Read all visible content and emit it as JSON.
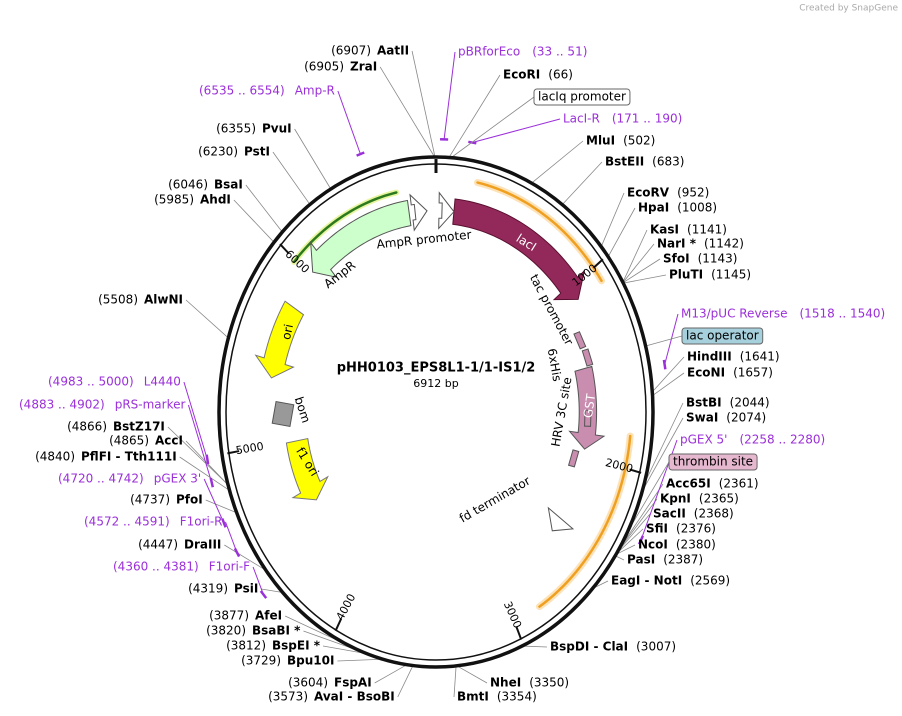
{
  "header": {
    "credit": "Created by SnapGene"
  },
  "map": {
    "name": "pHH0103_EPS8L1-1/1-IS1/2",
    "size": {
      "value": 6912,
      "label": "6912 bp"
    },
    "ruler": {
      "ticks": [
        1000,
        2000,
        3000,
        4000,
        5000,
        6000
      ]
    },
    "sites": [
      {
        "name": "AatII",
        "position": {
          "value": 6907,
          "label": "(6907)"
        }
      },
      {
        "name": "ZraI",
        "position": {
          "value": 6905,
          "label": "(6905)"
        }
      },
      {
        "name": "EcoRI",
        "position": {
          "value": 66,
          "label": "(66)"
        }
      },
      {
        "name": "MluI",
        "position": {
          "value": 502,
          "label": "(502)"
        }
      },
      {
        "name": "BstEII",
        "position": {
          "value": 683,
          "label": "(683)"
        }
      },
      {
        "name": "EcoRV",
        "position": {
          "value": 952,
          "label": "(952)"
        }
      },
      {
        "name": "HpaI",
        "position": {
          "value": 1008,
          "label": "(1008)"
        }
      },
      {
        "name": "KasI",
        "position": {
          "value": 1141,
          "label": "(1141)"
        }
      },
      {
        "name": "NarI *",
        "position": {
          "value": 1142,
          "label": "(1142)"
        }
      },
      {
        "name": "SfoI",
        "position": {
          "value": 1143,
          "label": "(1143)"
        }
      },
      {
        "name": "PluTI",
        "position": {
          "value": 1145,
          "label": "(1145)"
        }
      },
      {
        "name": "HindIII",
        "position": {
          "value": 1641,
          "label": "(1641)"
        }
      },
      {
        "name": "EcoNI",
        "position": {
          "value": 1657,
          "label": "(1657)"
        }
      },
      {
        "name": "BstBI",
        "position": {
          "value": 2044,
          "label": "(2044)"
        }
      },
      {
        "name": "SwaI",
        "position": {
          "value": 2074,
          "label": "(2074)"
        }
      },
      {
        "name": "Acc65I",
        "position": {
          "value": 2361,
          "label": "(2361)"
        }
      },
      {
        "name": "KpnI",
        "position": {
          "value": 2365,
          "label": "(2365)"
        }
      },
      {
        "name": "SacII",
        "position": {
          "value": 2368,
          "label": "(2368)"
        }
      },
      {
        "name": "SfiI",
        "position": {
          "value": 2376,
          "label": "(2376)"
        }
      },
      {
        "name": "NcoI",
        "position": {
          "value": 2380,
          "label": "(2380)"
        }
      },
      {
        "name": "PasI",
        "position": {
          "value": 2387,
          "label": "(2387)"
        }
      },
      {
        "name": "EagI - NotI",
        "position": {
          "value": 2569,
          "label": "(2569)"
        }
      },
      {
        "name": "BspDI - ClaI",
        "position": {
          "value": 3007,
          "label": "(3007)"
        }
      },
      {
        "name": "NheI",
        "position": {
          "value": 3350,
          "label": "(3350)"
        }
      },
      {
        "name": "BmtI",
        "position": {
          "value": 3354,
          "label": "(3354)"
        }
      },
      {
        "name": "AvaI - BsoBI",
        "position": {
          "value": 3573,
          "label": "(3573)"
        }
      },
      {
        "name": "FspAI",
        "position": {
          "value": 3604,
          "label": "(3604)"
        }
      },
      {
        "name": "Bpu10I",
        "position": {
          "value": 3729,
          "label": "(3729)"
        }
      },
      {
        "name": "BspEI *",
        "position": {
          "value": 3812,
          "label": "(3812)"
        }
      },
      {
        "name": "BsaBI *",
        "position": {
          "value": 3820,
          "label": "(3820)"
        }
      },
      {
        "name": "AfeI",
        "position": {
          "value": 3877,
          "label": "(3877)"
        }
      },
      {
        "name": "PsiI",
        "position": {
          "value": 4319,
          "label": "(4319)"
        }
      },
      {
        "name": "DraIII",
        "position": {
          "value": 4447,
          "label": "(4447)"
        }
      },
      {
        "name": "PfoI",
        "position": {
          "value": 4737,
          "label": "(4737)"
        }
      },
      {
        "name": "PflFI - Tth111I",
        "position": {
          "value": 4840,
          "label": "(4840)"
        }
      },
      {
        "name": "AccI",
        "position": {
          "value": 4865,
          "label": "(4865)"
        }
      },
      {
        "name": "BstZ17I",
        "position": {
          "value": 4866,
          "label": "(4866)"
        }
      },
      {
        "name": "AlwNI",
        "position": {
          "value": 5508,
          "label": "(5508)"
        }
      },
      {
        "name": "AhdI",
        "position": {
          "value": 5985,
          "label": "(5985)"
        }
      },
      {
        "name": "BsaI",
        "position": {
          "value": 6046,
          "label": "(6046)"
        }
      },
      {
        "name": "PstI",
        "position": {
          "value": 6230,
          "label": "(6230)"
        }
      },
      {
        "name": "PvuI",
        "position": {
          "value": 6355,
          "label": "(6355)"
        }
      }
    ],
    "primers": [
      {
        "name": "pBRforEco",
        "range": "(33 .. 51)"
      },
      {
        "name": "Amp-R",
        "range": "(6535 .. 6554)"
      },
      {
        "name": "LacI-R",
        "range": "(171 .. 190)"
      },
      {
        "name": "M13/pUC Reverse",
        "range": "(1518 .. 1540)"
      },
      {
        "name": "L4440",
        "range": "(4983 .. 5000)"
      },
      {
        "name": "pRS-marker",
        "range": "(4883 .. 4902)"
      },
      {
        "name": "pGEX 5'",
        "range": "(2258 .. 2280)"
      },
      {
        "name": "pGEX 3'",
        "range": "(4720 .. 4742)"
      },
      {
        "name": "F1ori-R",
        "range": "(4572 .. 4591)"
      },
      {
        "name": "F1ori-F",
        "range": "(4360 .. 4381)"
      }
    ],
    "annotations": [
      "lacIq promoter",
      "lac operator",
      "thrombin site"
    ],
    "features": [
      "AmpR promoter",
      "AmpR",
      "ori",
      "bom",
      "f1 ori",
      "lacI",
      "tac promoter",
      "6xHis",
      "HRV 3C site",
      "GST",
      "fd terminator"
    ]
  }
}
